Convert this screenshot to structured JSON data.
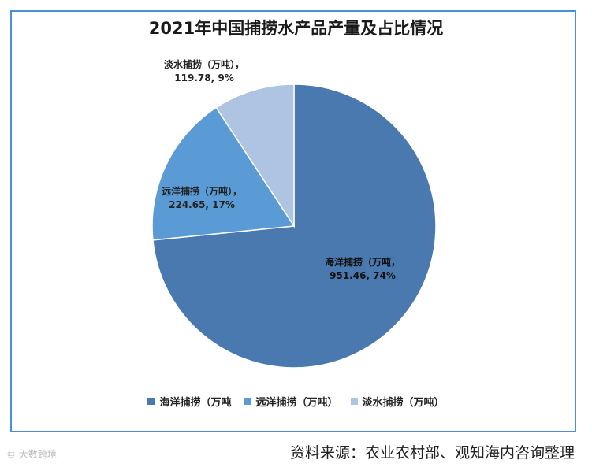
{
  "chart_data": {
    "type": "pie",
    "title": "2021年中国捕捞水产品产量及占比情况",
    "slices": [
      {
        "name": "海洋捕捞（万吨",
        "value": 951.46,
        "percent": "74%",
        "label": "海洋捕捞（万吨，",
        "value_label": "951.46, 74%",
        "color": "#4a79b0"
      },
      {
        "name": "远洋捕捞（万吨）",
        "value": 224.65,
        "percent": "17%",
        "label": "远洋捕捞（万吨），",
        "value_label": "224.65, 17%",
        "color": "#5b9bd5"
      },
      {
        "name": "淡水捕捞（万吨）",
        "value": 119.78,
        "percent": "9%",
        "label": "淡水捕捞（万吨），",
        "value_label": "119.78, 9%",
        "color": "#aec4e2"
      }
    ],
    "legend_placement": "bottom"
  },
  "source": "资料来源：农业农村部、观知海内咨询整理",
  "corner_mark": "© 大数跨境"
}
